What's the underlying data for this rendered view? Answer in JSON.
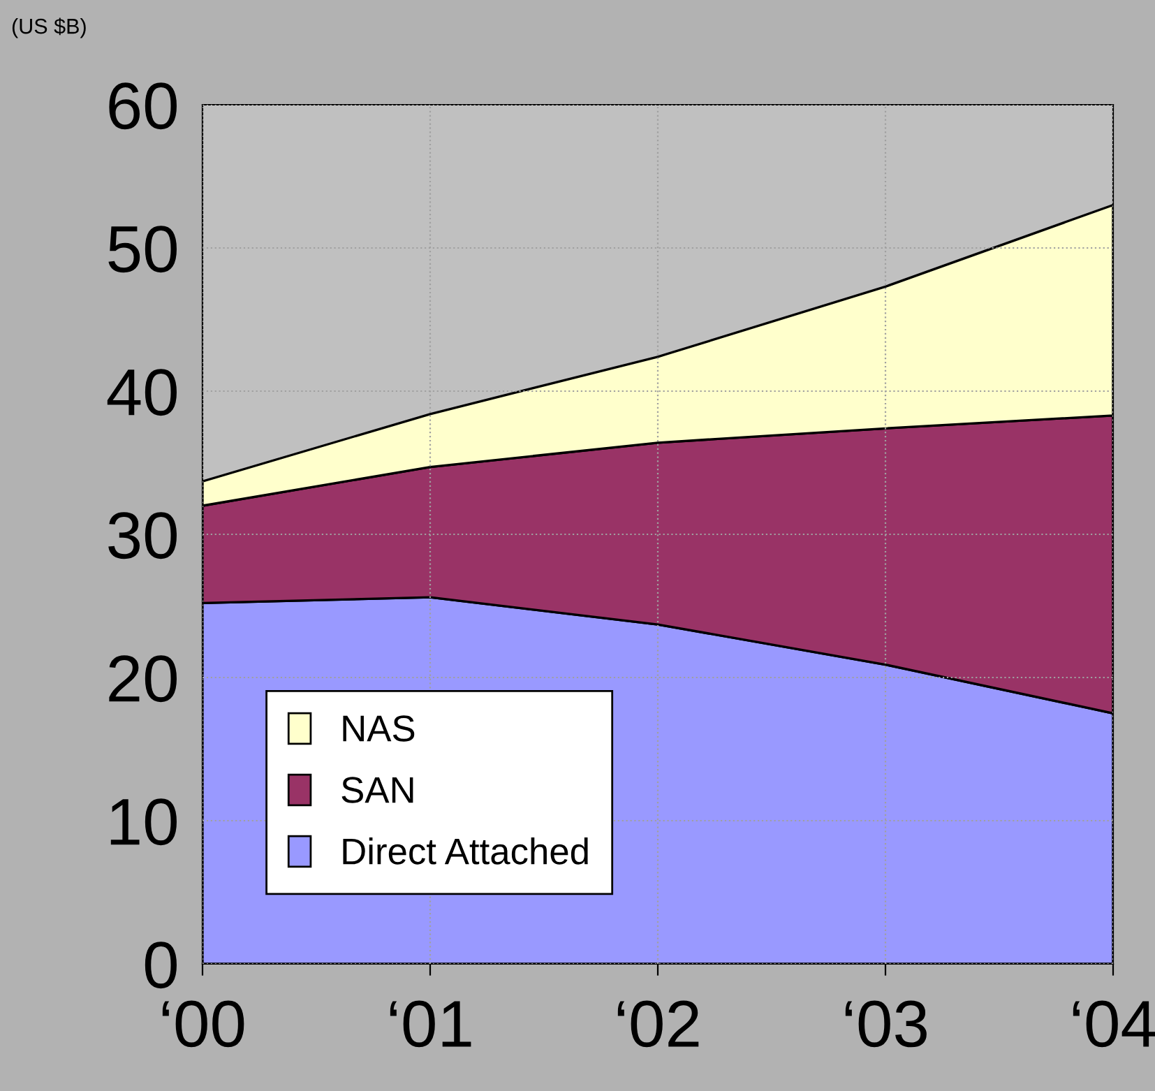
{
  "chart_data": {
    "type": "area",
    "stacked": true,
    "ylabel": "(US $B)",
    "categories": [
      "‘00",
      "‘01",
      "‘02",
      "‘03",
      "‘04"
    ],
    "series": [
      {
        "name": "Direct Attached",
        "color": "#9999ff",
        "values": [
          25.2,
          25.6,
          23.7,
          20.9,
          17.5
        ]
      },
      {
        "name": "SAN",
        "color": "#993366",
        "values": [
          6.8,
          9.1,
          12.7,
          16.5,
          20.8
        ]
      },
      {
        "name": "NAS",
        "color": "#ffffcc",
        "values": [
          1.7,
          3.7,
          6.0,
          9.9,
          14.7
        ]
      }
    ],
    "ylim": [
      0,
      60
    ],
    "yticks": [
      0,
      10,
      20,
      30,
      40,
      50,
      60
    ],
    "grid": true,
    "legend": "bottom left"
  }
}
